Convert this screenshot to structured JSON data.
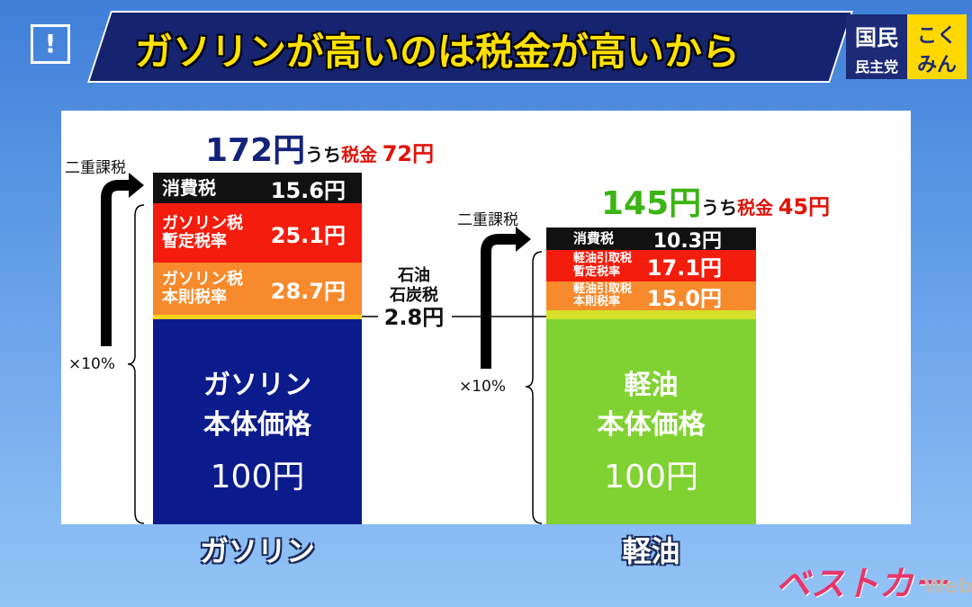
{
  "header": {
    "badge": "!",
    "title": "ガソリンが高いのは税金が高いから",
    "logo": [
      "国民",
      "民主党",
      "こく",
      "みん"
    ]
  },
  "gasoline": {
    "total": "172円",
    "tax_prefix": "うち",
    "tax_label": "税金",
    "tax": "72円",
    "double_tax": "二重課税",
    "ten_percent": "×10%",
    "segments": [
      {
        "label": [
          "消費税"
        ],
        "value": "15.6円"
      },
      {
        "label": [
          "ガソリン税",
          "暫定税率"
        ],
        "value": "25.1円"
      },
      {
        "label": [
          "ガソリン税",
          "本則税率"
        ],
        "value": "28.7円"
      }
    ],
    "base": {
      "label": [
        "ガソリン",
        "本体価格"
      ],
      "value": "100円"
    },
    "name": "ガソリン"
  },
  "diesel": {
    "total": "145円",
    "tax_prefix": "うち",
    "tax_label": "税金",
    "tax": "45円",
    "double_tax": "二重課税",
    "ten_percent": "×10%",
    "segments": [
      {
        "label": [
          "消費税"
        ],
        "value": "10.3円"
      },
      {
        "label": [
          "軽油引取税",
          "暫定税率"
        ],
        "value": "17.1円"
      },
      {
        "label": [
          "軽油引取税",
          "本則税率"
        ],
        "value": "15.0円"
      }
    ],
    "base": {
      "label": [
        "軽油",
        "本体価格"
      ],
      "value": "100円"
    },
    "name": "軽油"
  },
  "coal_tax": {
    "label": [
      "石油",
      "石炭税"
    ],
    "value": "2.8円"
  },
  "watermark": {
    "text": "ベストカー",
    "suffix": "Web"
  }
}
